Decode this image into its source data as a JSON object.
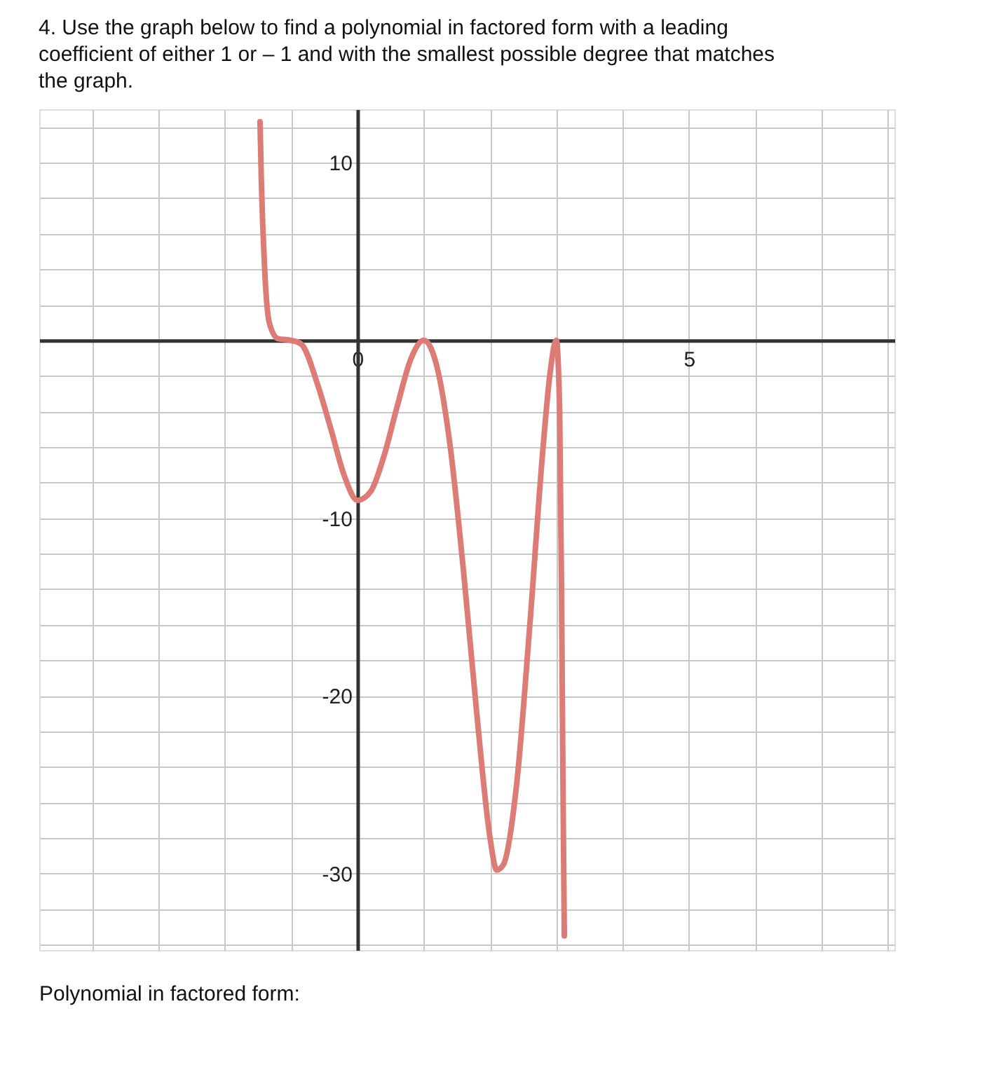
{
  "chart_data": {
    "type": "line",
    "title": "4. Use the graph below to find a polynomial in factored form with a leading\n    coefficient of either 1 or – 1 and with the smallest possible degree that matches\n    the graph.",
    "annotations": [
      "Polynomial in factored form:"
    ],
    "x": [
      -1.47,
      -1.45,
      -1.4,
      -1.33,
      -1.2,
      -1,
      -0.85,
      -0.6,
      -0.4,
      -0.2,
      0,
      0.2,
      0.4,
      0.6,
      0.8,
      1,
      1.2,
      1.4,
      1.6,
      1.8,
      2,
      2.1,
      2.2,
      2.4,
      2.6,
      2.8,
      2.9,
      3,
      3.05,
      3.08,
      3.1,
      3.12
    ],
    "series": [
      {
        "color": "#dd7b76",
        "values": [
          12.3,
          9,
          4,
          1,
          0.1,
          0,
          -0.2,
          -2.5,
          -5,
          -7.6,
          -9,
          -8.5,
          -6.5,
          -3.7,
          -1.1,
          0,
          -1.5,
          -6,
          -13,
          -21,
          -28,
          -29.8,
          -29.5,
          -25,
          -16,
          -6,
          -2,
          0,
          -4,
          -15,
          -25,
          -33.5
        ]
      }
    ],
    "xlim": [
      -4.8,
      8.1
    ],
    "ylim": [
      -34.3,
      13
    ],
    "xticks": [
      {
        "value": -4,
        "label": null
      },
      {
        "value": -3,
        "label": null
      },
      {
        "value": -2,
        "label": null
      },
      {
        "value": -1,
        "label": null
      },
      0,
      {
        "value": 1,
        "label": null
      },
      {
        "value": 2,
        "label": null
      },
      {
        "value": 3,
        "label": null
      },
      {
        "value": 4,
        "label": null
      },
      5,
      {
        "value": 6,
        "label": null
      },
      {
        "value": 7,
        "label": null
      },
      {
        "value": 8,
        "label": null
      }
    ],
    "yticks": [
      {
        "value": -34,
        "label": null
      },
      {
        "value": -32,
        "label": null
      },
      -30,
      {
        "value": -28,
        "label": null
      },
      {
        "value": -26,
        "label": null
      },
      {
        "value": -24,
        "label": null
      },
      {
        "value": -22,
        "label": null
      },
      -20,
      {
        "value": -18,
        "label": null
      },
      {
        "value": -16,
        "label": null
      },
      {
        "value": -14,
        "label": null
      },
      {
        "value": -12,
        "label": null
      },
      -10,
      {
        "value": -8,
        "label": null
      },
      {
        "value": -6,
        "label": null
      },
      {
        "value": -4,
        "label": null
      },
      {
        "value": -2,
        "label": null
      },
      {
        "value": 0,
        "label": null
      },
      {
        "value": 2,
        "label": null
      },
      {
        "value": 4,
        "label": null
      },
      {
        "value": 6,
        "label": null
      },
      {
        "value": 8,
        "label": null
      },
      10,
      {
        "value": 12,
        "label": null
      }
    ],
    "grid": true,
    "marker": "none",
    "line_style": "solid"
  }
}
